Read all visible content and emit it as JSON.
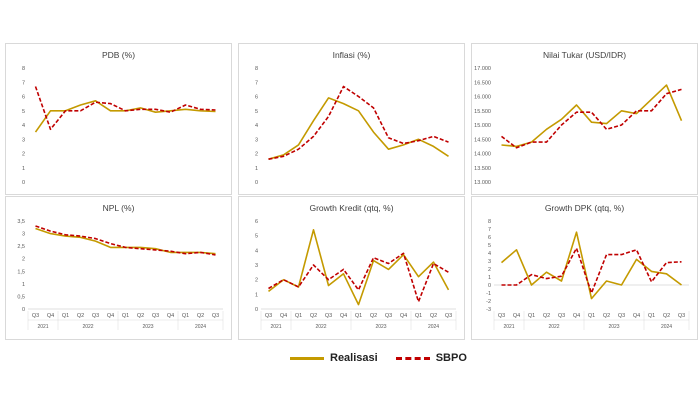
{
  "colors": {
    "realisasi": "#c49a00",
    "sbpo": "#c00000"
  },
  "legend": {
    "realisasi": "Realisasi",
    "sbpo": "SBPO"
  },
  "chart_data": [
    {
      "type": "line",
      "title": "PDB (%)",
      "ylim": [
        0,
        8
      ],
      "yticks": [
        "0",
        "1",
        "2",
        "3",
        "4",
        "5",
        "6",
        "7",
        "8"
      ],
      "categories": [
        "Q3 2021",
        "Q4 2021",
        "Q1 2022",
        "Q2 2022",
        "Q3 2022",
        "Q4 2022",
        "Q1 2023",
        "Q2 2023",
        "Q3 2023",
        "Q4 2023",
        "Q1 2024",
        "Q2 2024",
        "Q3 2024"
      ],
      "series": [
        {
          "name": "Realisasi",
          "values": [
            3.5,
            5.0,
            5.0,
            5.4,
            5.7,
            5.0,
            5.0,
            5.2,
            4.9,
            5.0,
            5.1,
            5.0,
            4.95
          ]
        },
        {
          "name": "SBPO",
          "values": [
            6.7,
            3.7,
            5.0,
            5.0,
            5.6,
            5.5,
            5.0,
            5.1,
            5.1,
            4.9,
            5.4,
            5.1,
            5.05
          ]
        }
      ]
    },
    {
      "type": "line",
      "title": "Inflasi (%)",
      "ylim": [
        0,
        8
      ],
      "yticks": [
        "0",
        "1",
        "2",
        "3",
        "4",
        "5",
        "6",
        "7",
        "8"
      ],
      "categories": [
        "Q3 2021",
        "Q4 2021",
        "Q1 2022",
        "Q2 2022",
        "Q3 2022",
        "Q4 2022",
        "Q1 2023",
        "Q2 2023",
        "Q3 2023",
        "Q4 2023",
        "Q1 2024",
        "Q2 2024",
        "Q3 2024"
      ],
      "series": [
        {
          "name": "Realisasi",
          "values": [
            1.6,
            1.9,
            2.6,
            4.3,
            5.9,
            5.5,
            5.0,
            3.5,
            2.3,
            2.6,
            3.0,
            2.5,
            1.8
          ]
        },
        {
          "name": "SBPO",
          "values": [
            1.6,
            1.8,
            2.3,
            3.2,
            4.6,
            6.7,
            6.0,
            5.2,
            3.1,
            2.7,
            2.9,
            3.2,
            2.8
          ]
        }
      ]
    },
    {
      "type": "line",
      "title": "Nilai Tukar (USD/IDR)",
      "ylim": [
        13000,
        17000
      ],
      "yticks": [
        "13.000",
        "13.500",
        "14.000",
        "14.500",
        "15.000",
        "15.500",
        "16.000",
        "16.500",
        "17.000"
      ],
      "categories": [
        "Q3 2021",
        "Q4 2021",
        "Q1 2022",
        "Q2 2022",
        "Q3 2022",
        "Q4 2022",
        "Q1 2023",
        "Q2 2023",
        "Q3 2023",
        "Q4 2023",
        "Q1 2024",
        "Q2 2024",
        "Q3 2024"
      ],
      "series": [
        {
          "name": "Realisasi",
          "values": [
            14300,
            14250,
            14400,
            14850,
            15200,
            15700,
            15100,
            15050,
            15500,
            15400,
            15900,
            16400,
            15150
          ]
        },
        {
          "name": "SBPO",
          "values": [
            14600,
            14200,
            14400,
            14400,
            15000,
            15450,
            15450,
            14850,
            15000,
            15500,
            15500,
            16100,
            16250
          ]
        }
      ]
    },
    {
      "type": "line",
      "title": "NPL (%)",
      "ylim": [
        0,
        3.5
      ],
      "yticks": [
        "0",
        "0,5",
        "1",
        "1,5",
        "2",
        "2,5",
        "3",
        "3,5"
      ],
      "categories": [
        "Q3 2021",
        "Q4 2021",
        "Q1 2022",
        "Q2 2022",
        "Q3 2022",
        "Q4 2022",
        "Q1 2023",
        "Q2 2023",
        "Q3 2023",
        "Q4 2023",
        "Q1 2024",
        "Q2 2024",
        "Q3 2024"
      ],
      "series": [
        {
          "name": "Realisasi",
          "values": [
            3.2,
            3.0,
            2.9,
            2.85,
            2.7,
            2.45,
            2.45,
            2.45,
            2.4,
            2.25,
            2.25,
            2.25,
            2.2
          ]
        },
        {
          "name": "SBPO",
          "values": [
            3.3,
            3.1,
            2.95,
            2.9,
            2.8,
            2.6,
            2.45,
            2.4,
            2.35,
            2.3,
            2.2,
            2.25,
            2.15
          ]
        }
      ]
    },
    {
      "type": "line",
      "title": "Growth Kredit (qtq, %)",
      "ylim": [
        0,
        6
      ],
      "yticks": [
        "0",
        "1",
        "2",
        "3",
        "4",
        "5",
        "6"
      ],
      "categories": [
        "Q3 2021",
        "Q4 2021",
        "Q1 2022",
        "Q2 2022",
        "Q3 2022",
        "Q4 2022",
        "Q1 2023",
        "Q2 2023",
        "Q3 2023",
        "Q4 2023",
        "Q1 2024",
        "Q2 2024",
        "Q3 2024"
      ],
      "series": [
        {
          "name": "Realisasi",
          "values": [
            1.2,
            2.0,
            1.5,
            5.4,
            1.6,
            2.4,
            0.3,
            3.3,
            2.7,
            3.7,
            2.2,
            3.2,
            1.3
          ]
        },
        {
          "name": "SBPO",
          "values": [
            1.4,
            2.0,
            1.5,
            3.0,
            2.0,
            2.7,
            1.3,
            3.5,
            3.1,
            3.8,
            0.5,
            3.1,
            2.5
          ]
        }
      ]
    },
    {
      "type": "line",
      "title": "Growth DPK (qtq, %)",
      "ylim": [
        -3,
        8
      ],
      "yticks": [
        "-3",
        "-2",
        "-1",
        "0",
        "1",
        "2",
        "3",
        "4",
        "5",
        "6",
        "7",
        "8"
      ],
      "categories": [
        "Q3 2021",
        "Q4 2021",
        "Q1 2022",
        "Q2 2022",
        "Q3 2022",
        "Q4 2022",
        "Q1 2023",
        "Q2 2023",
        "Q3 2023",
        "Q4 2023",
        "Q1 2024",
        "Q2 2024",
        "Q3 2024"
      ],
      "series": [
        {
          "name": "Realisasi",
          "values": [
            2.8,
            4.4,
            0.0,
            1.6,
            0.5,
            6.6,
            -1.7,
            0.5,
            0.0,
            3.2,
            1.7,
            1.4,
            0.0
          ]
        },
        {
          "name": "SBPO",
          "values": [
            0.0,
            0.0,
            1.3,
            0.8,
            1.1,
            4.6,
            -1.0,
            3.8,
            3.8,
            4.4,
            0.4,
            2.8,
            2.9
          ]
        }
      ]
    }
  ],
  "axis_labels": {
    "quarters": [
      "Q3",
      "Q4",
      "Q1",
      "Q2",
      "Q3",
      "Q4",
      "Q1",
      "Q2",
      "Q3",
      "Q4",
      "Q1",
      "Q2",
      "Q3"
    ],
    "years": [
      "2021",
      "2022",
      "2023",
      "2024"
    ]
  }
}
